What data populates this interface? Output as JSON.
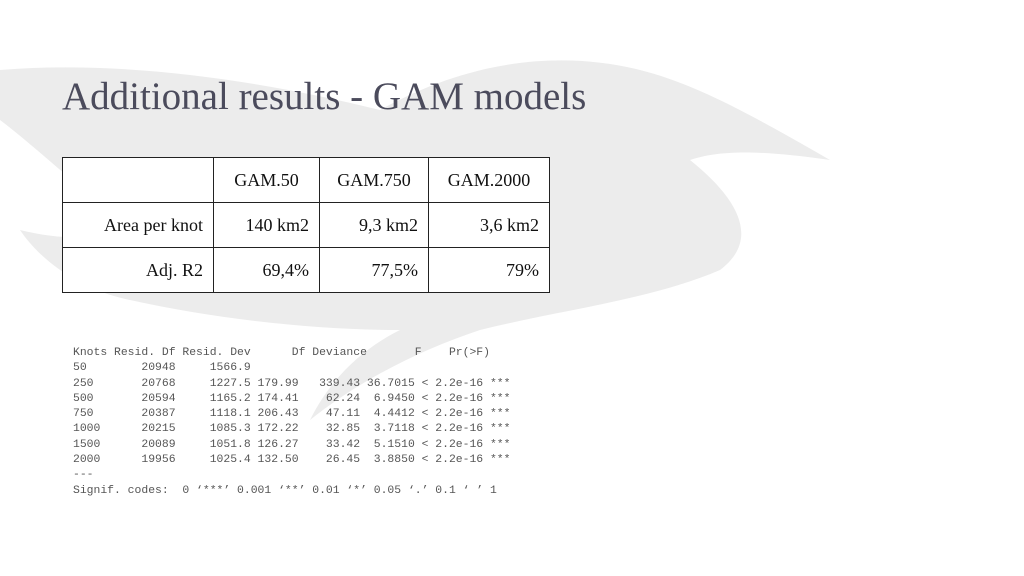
{
  "title": "Additional results - GAM models",
  "table": {
    "columns": [
      "GAM.50",
      "GAM.750",
      "GAM.2000"
    ],
    "rows": [
      {
        "label": "Area per knot",
        "cells": [
          "140 km2",
          "9,3 km2",
          "3,6 km2"
        ]
      },
      {
        "label": "Adj. R2",
        "cells": [
          "69,4%",
          "77,5%",
          "79%"
        ]
      }
    ]
  },
  "console": [
    "Knots Resid. Df Resid. Dev      Df Deviance       F    Pr(>F)    ",
    "50        20948     1566.9                                        ",
    "250       20768     1227.5 179.99   339.43 36.7015 < 2.2e-16 ***",
    "500       20594     1165.2 174.41    62.24  6.9450 < 2.2e-16 ***",
    "750       20387     1118.1 206.43    47.11  4.4412 < 2.2e-16 ***",
    "1000      20215     1085.3 172.22    32.85  3.7118 < 2.2e-16 ***",
    "1500      20089     1051.8 126.27    33.42  5.1510 < 2.2e-16 ***",
    "2000      19956     1025.4 132.50    26.45  3.8850 < 2.2e-16 ***",
    "---",
    "Signif. codes:  0 ‘***’ 0.001 ‘**’ 0.01 ‘*’ 0.05 ‘.’ 0.1 ‘ ’ 1"
  ]
}
